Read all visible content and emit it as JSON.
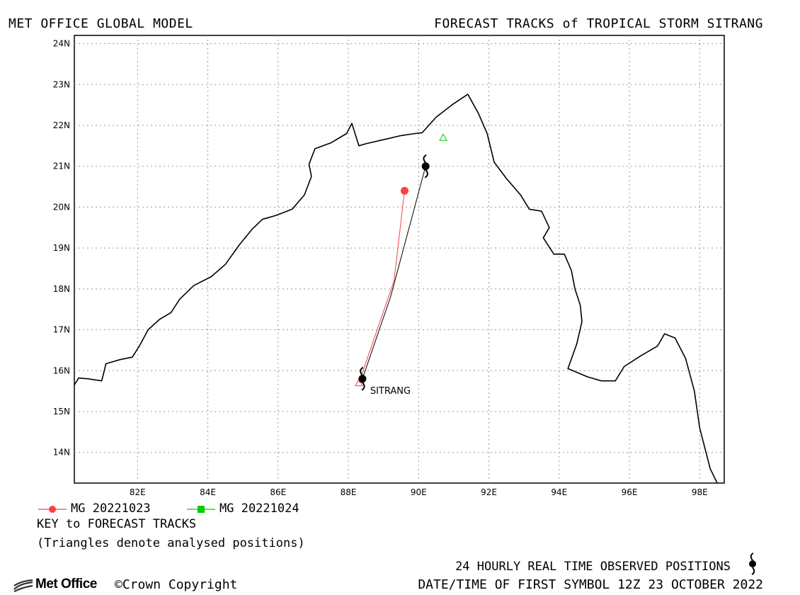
{
  "header": {
    "left": "MET OFFICE GLOBAL MODEL",
    "right": "FORECAST TRACKS of TROPICAL STORM SITRANG"
  },
  "map": {
    "lon_range": [
      80.2,
      98.7
    ],
    "lat_range": [
      13.25,
      24.2
    ],
    "lat_ticks": [
      "14N",
      "15N",
      "16N",
      "17N",
      "18N",
      "19N",
      "20N",
      "21N",
      "22N",
      "23N",
      "24N"
    ],
    "lon_ticks": [
      "82E",
      "84E",
      "86E",
      "88E",
      "90E",
      "92E",
      "94E",
      "96E",
      "98E"
    ],
    "gridlines": true,
    "coastline": [
      [
        80.2,
        15.65
      ],
      [
        80.32,
        15.82
      ],
      [
        80.6,
        15.8
      ],
      [
        80.98,
        15.75
      ],
      [
        81.1,
        16.17
      ],
      [
        81.5,
        16.27
      ],
      [
        81.85,
        16.33
      ],
      [
        82.05,
        16.6
      ],
      [
        82.3,
        17.0
      ],
      [
        82.62,
        17.25
      ],
      [
        82.95,
        17.42
      ],
      [
        83.2,
        17.75
      ],
      [
        83.6,
        18.08
      ],
      [
        84.1,
        18.3
      ],
      [
        84.5,
        18.6
      ],
      [
        84.9,
        19.08
      ],
      [
        85.25,
        19.45
      ],
      [
        85.55,
        19.7
      ],
      [
        85.95,
        19.8
      ],
      [
        86.4,
        19.95
      ],
      [
        86.75,
        20.3
      ],
      [
        86.95,
        20.75
      ],
      [
        86.88,
        21.05
      ],
      [
        87.05,
        21.43
      ],
      [
        87.5,
        21.57
      ],
      [
        87.95,
        21.8
      ],
      [
        88.1,
        22.05
      ],
      [
        88.3,
        21.5
      ],
      [
        88.5,
        21.55
      ],
      [
        89.0,
        21.65
      ],
      [
        89.5,
        21.75
      ],
      [
        89.9,
        21.8
      ],
      [
        90.1,
        21.82
      ],
      [
        90.5,
        22.2
      ],
      [
        90.95,
        22.5
      ],
      [
        91.4,
        22.76
      ],
      [
        91.7,
        22.3
      ],
      [
        91.95,
        21.8
      ],
      [
        92.15,
        21.1
      ],
      [
        92.5,
        20.7
      ],
      [
        92.9,
        20.3
      ],
      [
        93.15,
        19.95
      ],
      [
        93.5,
        19.9
      ],
      [
        93.72,
        19.5
      ],
      [
        93.55,
        19.25
      ],
      [
        93.85,
        18.85
      ],
      [
        94.15,
        18.85
      ],
      [
        94.35,
        18.45
      ],
      [
        94.45,
        18.0
      ],
      [
        94.6,
        17.6
      ],
      [
        94.65,
        17.2
      ],
      [
        94.5,
        16.65
      ],
      [
        94.25,
        16.05
      ],
      [
        94.8,
        15.85
      ],
      [
        95.2,
        15.75
      ],
      [
        95.6,
        15.75
      ],
      [
        95.85,
        16.1
      ],
      [
        96.3,
        16.35
      ],
      [
        96.8,
        16.6
      ],
      [
        97.0,
        16.9
      ],
      [
        97.3,
        16.8
      ],
      [
        97.6,
        16.3
      ],
      [
        97.85,
        15.5
      ],
      [
        98.0,
        14.6
      ],
      [
        98.3,
        13.6
      ],
      [
        98.5,
        13.25
      ]
    ],
    "observed_track": [
      [
        88.4,
        15.8
      ],
      [
        89.2,
        17.8
      ],
      [
        90.2,
        21.0
      ]
    ],
    "observed_symbols": [
      [
        88.4,
        15.8
      ],
      [
        90.2,
        21.0
      ]
    ],
    "storm_label": "SITRANG",
    "storm_label_lonlat": [
      88.62,
      15.5
    ]
  },
  "forecasts": [
    {
      "name": "MG 20221023",
      "color": "#ff4040",
      "marker": "circle",
      "track": [
        [
          88.3,
          15.7
        ],
        [
          89.3,
          18.2
        ],
        [
          89.6,
          20.4
        ]
      ],
      "analysed_triangle": [
        88.3,
        15.7
      ]
    },
    {
      "name": "MG 20221024",
      "color": "#00cc00",
      "marker": "square",
      "track": [],
      "analysed_triangle": [
        90.7,
        21.7
      ]
    }
  ],
  "legend": {
    "key_title": "KEY to FORECAST TRACKS",
    "key_note": "(Triangles denote analysed positions)"
  },
  "footer": {
    "logo_text": "Met Office",
    "copyright": "Crown Copyright",
    "obs_note": "24 HOURLY REAL TIME OBSERVED POSITIONS",
    "first_symbol": "DATE/TIME OF FIRST SYMBOL 12Z 23 OCTOBER 2022"
  }
}
